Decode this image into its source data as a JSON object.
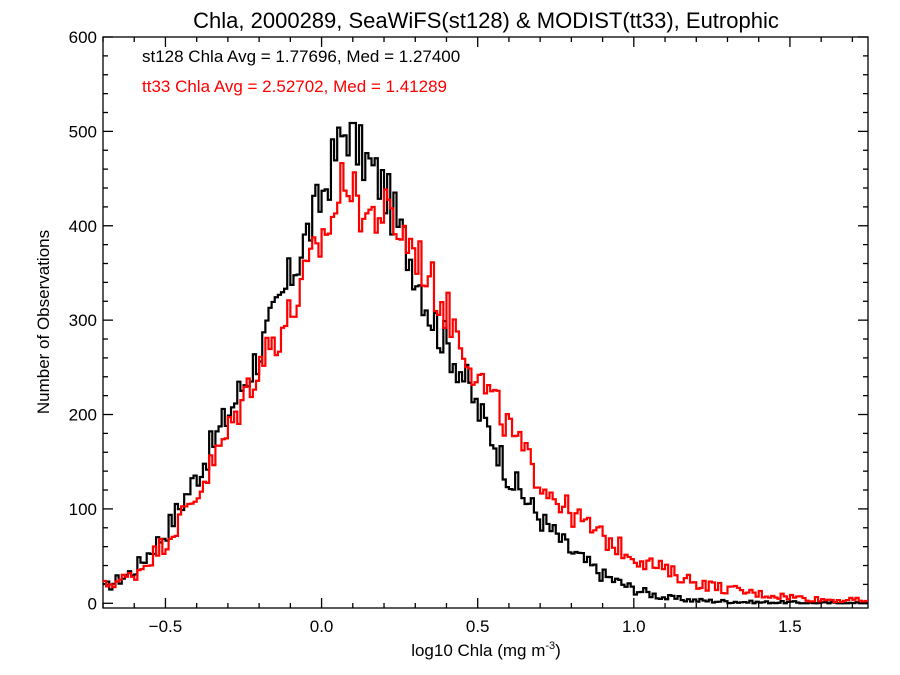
{
  "chart_data": {
    "type": "line",
    "title": "Chla, 2000289, SeaWiFS(st128) & MODIST(tt33), Eutrophic",
    "xlabel": "log10 Chla (mg m",
    "xlabel_sup": "-3",
    "xlabel_end": ")",
    "ylabel": "Number of Observations",
    "xlim": [
      -0.7,
      1.75
    ],
    "ylim": [
      -5,
      600
    ],
    "x_ticks": [
      -0.5,
      0.0,
      0.5,
      1.0,
      1.5
    ],
    "x_tick_labels": [
      "−0.5",
      "0.0",
      "0.5",
      "1.0",
      "1.5"
    ],
    "y_ticks": [
      0,
      100,
      200,
      300,
      400,
      500,
      600
    ],
    "y_tick_labels": [
      "0",
      "100",
      "200",
      "300",
      "400",
      "500",
      "600"
    ],
    "grid": false,
    "annotations": [
      "st128 Chla Avg = 1.77696, Med = 1.27400",
      "tt33 Chla Avg = 2.52702, Med = 1.41289"
    ],
    "series": [
      {
        "color": "#000000",
        "step": "histogram",
        "x": [
          -0.7,
          -0.6,
          -0.5,
          -0.4,
          -0.3,
          -0.2,
          -0.1,
          0.0,
          0.05,
          0.08,
          0.1,
          0.15,
          0.2,
          0.25,
          0.3,
          0.35,
          0.4,
          0.45,
          0.5,
          0.55,
          0.6,
          0.7,
          0.8,
          0.9,
          1.0,
          1.1,
          1.2,
          1.3,
          1.4,
          1.5,
          1.6,
          1.75
        ],
        "y": [
          15,
          35,
          75,
          135,
          200,
          265,
          345,
          430,
          480,
          505,
          490,
          465,
          440,
          395,
          355,
          305,
          275,
          245,
          205,
          175,
          135,
          90,
          55,
          30,
          15,
          6,
          3,
          2,
          1,
          1,
          0,
          0
        ]
      },
      {
        "color": "#ff0000",
        "step": "histogram",
        "x": [
          -0.7,
          -0.6,
          -0.5,
          -0.4,
          -0.3,
          -0.2,
          -0.1,
          0.0,
          0.05,
          0.08,
          0.1,
          0.15,
          0.2,
          0.25,
          0.3,
          0.35,
          0.4,
          0.45,
          0.5,
          0.55,
          0.6,
          0.7,
          0.8,
          0.9,
          1.0,
          1.1,
          1.2,
          1.3,
          1.4,
          1.5,
          1.6,
          1.75
        ],
        "y": [
          18,
          30,
          65,
          115,
          180,
          255,
          305,
          385,
          420,
          465,
          430,
          410,
          415,
          395,
          375,
          340,
          310,
          280,
          240,
          215,
          185,
          130,
          95,
          70,
          50,
          35,
          22,
          15,
          10,
          7,
          4,
          3
        ]
      }
    ]
  }
}
